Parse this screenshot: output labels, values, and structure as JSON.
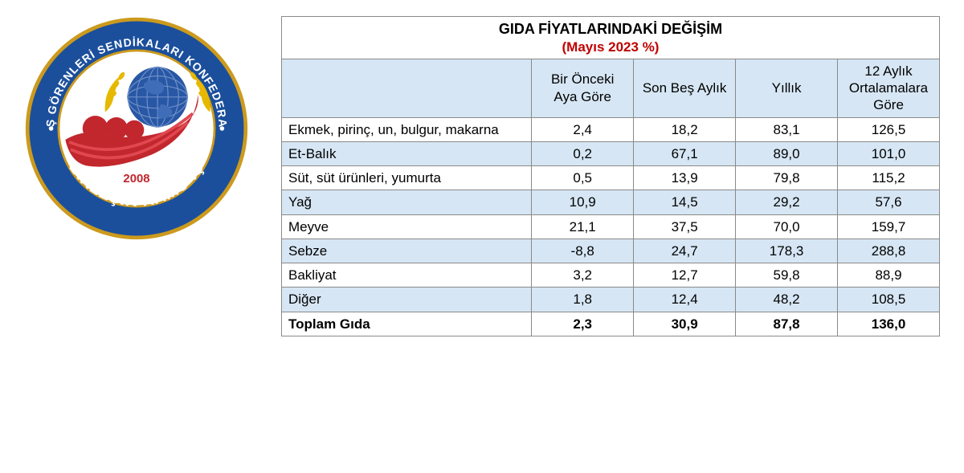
{
  "logo": {
    "top_arc_text": "KAMU İŞ GÖRENLERİ SENDİKALARI KONFEDERASYONU",
    "side_left": "BİRLEŞİK",
    "bottom_text": "BİRLEŞİK KAMU-İŞ",
    "year": "2008",
    "colors": {
      "ring_outer": "#1b4f9c",
      "ring_inner_bg": "#ffffff",
      "globe": "#2857a5",
      "globe_grid": "#6d8fc7",
      "laurel": "#e6b800",
      "swoosh": "#c1272d",
      "ring_border": "#cc9a1d"
    }
  },
  "table": {
    "title_main": "GIDA FİYATLARINDAKİ DEĞİŞİM",
    "title_sub": "(Mayıs 2023 %)",
    "title_sub_color": "#c00000",
    "header_bg": "#d6e6f4",
    "alt_row_bg": "#d6e6f4",
    "border_color": "#8a8a8a",
    "font_size": 17,
    "columns": [
      "",
      "Bir Önceki Aya Göre",
      "Son Beş Aylık",
      "Yıllık",
      "12 Aylık Ortalamalara Göre"
    ],
    "rows": [
      {
        "cat": "Ekmek, pirinç, un, bulgur, makarna",
        "vals": [
          "2,4",
          "18,2",
          "83,1",
          "126,5"
        ],
        "alt": false
      },
      {
        "cat": "Et-Balık",
        "vals": [
          "0,2",
          "67,1",
          "89,0",
          "101,0"
        ],
        "alt": true
      },
      {
        "cat": "Süt, süt ürünleri, yumurta",
        "vals": [
          "0,5",
          "13,9",
          "79,8",
          "115,2"
        ],
        "alt": false
      },
      {
        "cat": "Yağ",
        "vals": [
          "10,9",
          "14,5",
          "29,2",
          "57,6"
        ],
        "alt": true
      },
      {
        "cat": "Meyve",
        "vals": [
          "21,1",
          "37,5",
          "70,0",
          "159,7"
        ],
        "alt": false
      },
      {
        "cat": "Sebze",
        "vals": [
          "-8,8",
          "24,7",
          "178,3",
          "288,8"
        ],
        "alt": true
      },
      {
        "cat": "Bakliyat",
        "vals": [
          "3,2",
          "12,7",
          "59,8",
          "88,9"
        ],
        "alt": false
      },
      {
        "cat": "Diğer",
        "vals": [
          "1,8",
          "12,4",
          "48,2",
          "108,5"
        ],
        "alt": true
      }
    ],
    "total": {
      "cat": "Toplam Gıda",
      "vals": [
        "2,3",
        "30,9",
        "87,8",
        "136,0"
      ]
    }
  }
}
